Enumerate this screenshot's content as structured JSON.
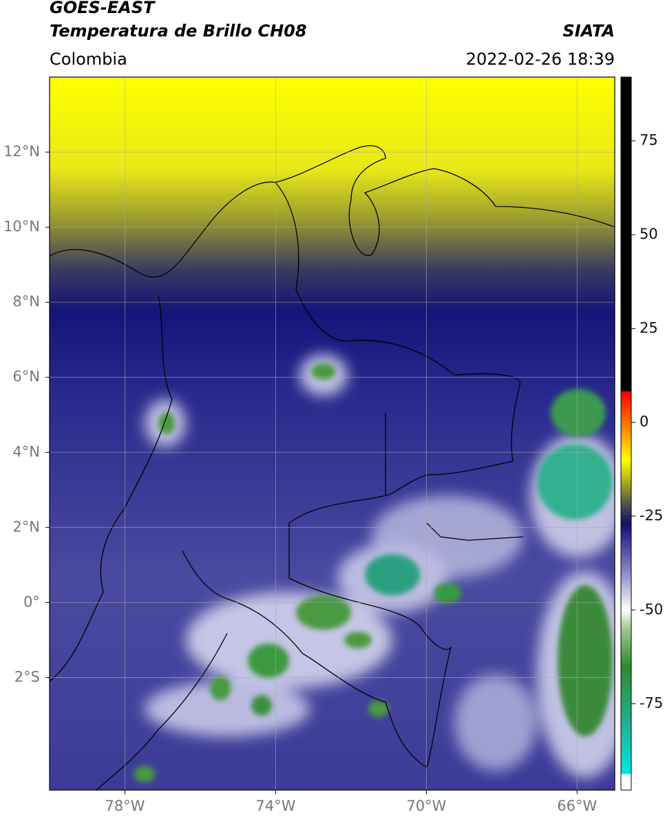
{
  "header": {
    "satellite": "GOES-EAST",
    "product": "Temperatura de Brillo CH08",
    "region": "Colombia",
    "source": "SIATA",
    "timestamp": "2022-02-26 18:39"
  },
  "map": {
    "xlim": [
      -80,
      -65
    ],
    "ylim": [
      -5,
      14
    ],
    "grid": true,
    "grid_color": "#aaaaaa",
    "xticks": [
      {
        "value": -78,
        "label": "78°W"
      },
      {
        "value": -74,
        "label": "74°W"
      },
      {
        "value": -70,
        "label": "70°W"
      },
      {
        "value": -66,
        "label": "66°W"
      }
    ],
    "yticks": [
      {
        "value": 12,
        "label": "12°N"
      },
      {
        "value": 10,
        "label": "10°N"
      },
      {
        "value": 8,
        "label": "8°N"
      },
      {
        "value": 6,
        "label": "6°N"
      },
      {
        "value": 4,
        "label": "4°N"
      },
      {
        "value": 2,
        "label": "2°N"
      },
      {
        "value": 0,
        "label": "0°"
      },
      {
        "value": -2,
        "label": "2°S"
      }
    ]
  },
  "colorbar": {
    "lim": [
      -98,
      92
    ],
    "ticks": [
      75,
      50,
      25,
      0,
      -25,
      -50,
      -75
    ],
    "stops": [
      {
        "value": -98,
        "color": "#ffffff"
      },
      {
        "value": -94,
        "color": "#ffffff"
      },
      {
        "value": -93.5,
        "color": "#00e5e5"
      },
      {
        "value": -80,
        "color": "#20b090"
      },
      {
        "value": -65,
        "color": "#2f8a2f"
      },
      {
        "value": -55,
        "color": "#a0c890"
      },
      {
        "value": -50,
        "color": "#ffffff"
      },
      {
        "value": -40,
        "color": "#8a8ac8"
      },
      {
        "value": -30,
        "color": "#2a2a90"
      },
      {
        "value": -27,
        "color": "#10106a"
      },
      {
        "value": -22,
        "color": "#505050"
      },
      {
        "value": -17,
        "color": "#9a9a20"
      },
      {
        "value": -10,
        "color": "#ffff00"
      },
      {
        "value": -3,
        "color": "#ff9900"
      },
      {
        "value": 8,
        "color": "#ff0000"
      },
      {
        "value": 8.5,
        "color": "#000000"
      },
      {
        "value": 92,
        "color": "#000000"
      }
    ]
  }
}
